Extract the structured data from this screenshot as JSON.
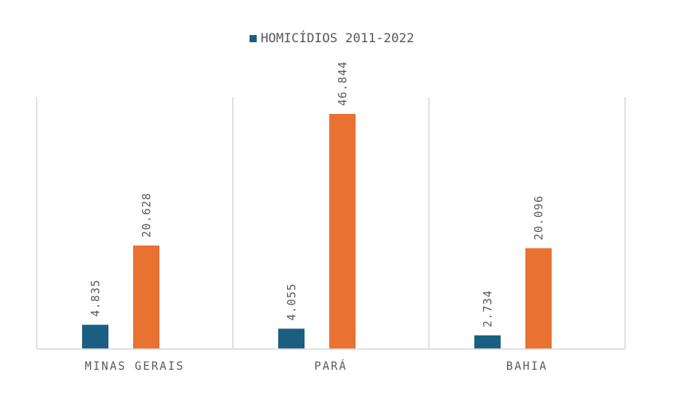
{
  "chart_data": {
    "type": "bar",
    "categories": [
      "MINAS GERAIS",
      "PARÁ",
      "BAHIA"
    ],
    "series": [
      {
        "name": "HOMICÍDIOS 2011-2022",
        "values": [
          4835,
          4055,
          2734
        ],
        "labels": [
          "4.835",
          "4.055",
          "2.734"
        ],
        "color": "#1a5f82"
      },
      {
        "name": "",
        "values": [
          20628,
          46844,
          20096
        ],
        "labels": [
          "20.628",
          "46.844",
          "20.096"
        ],
        "color": "#e97132"
      }
    ],
    "legend_position": "top",
    "ylim": [
      0,
      50000
    ],
    "grid": false,
    "category_dividers": true
  }
}
